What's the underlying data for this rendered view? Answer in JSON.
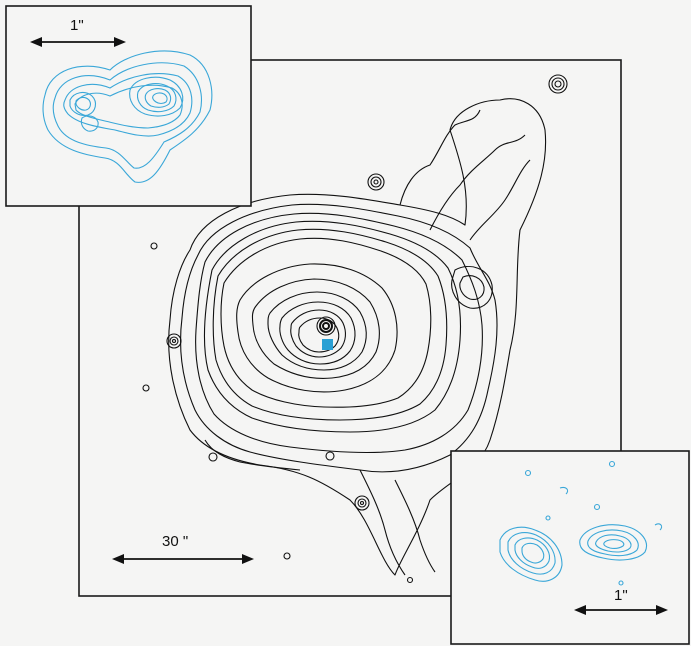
{
  "main_panel": {
    "scale_label": "30 \""
  },
  "inset_top_left": {
    "scale_label": "1\""
  },
  "inset_bottom_right": {
    "scale_label": "1\""
  },
  "colors": {
    "main_contours": "#111111",
    "inset_contours": "#3aa7d8",
    "marker": "#2aa0d4",
    "frame": "#1a1a1a",
    "background": "#f5f5f4"
  }
}
